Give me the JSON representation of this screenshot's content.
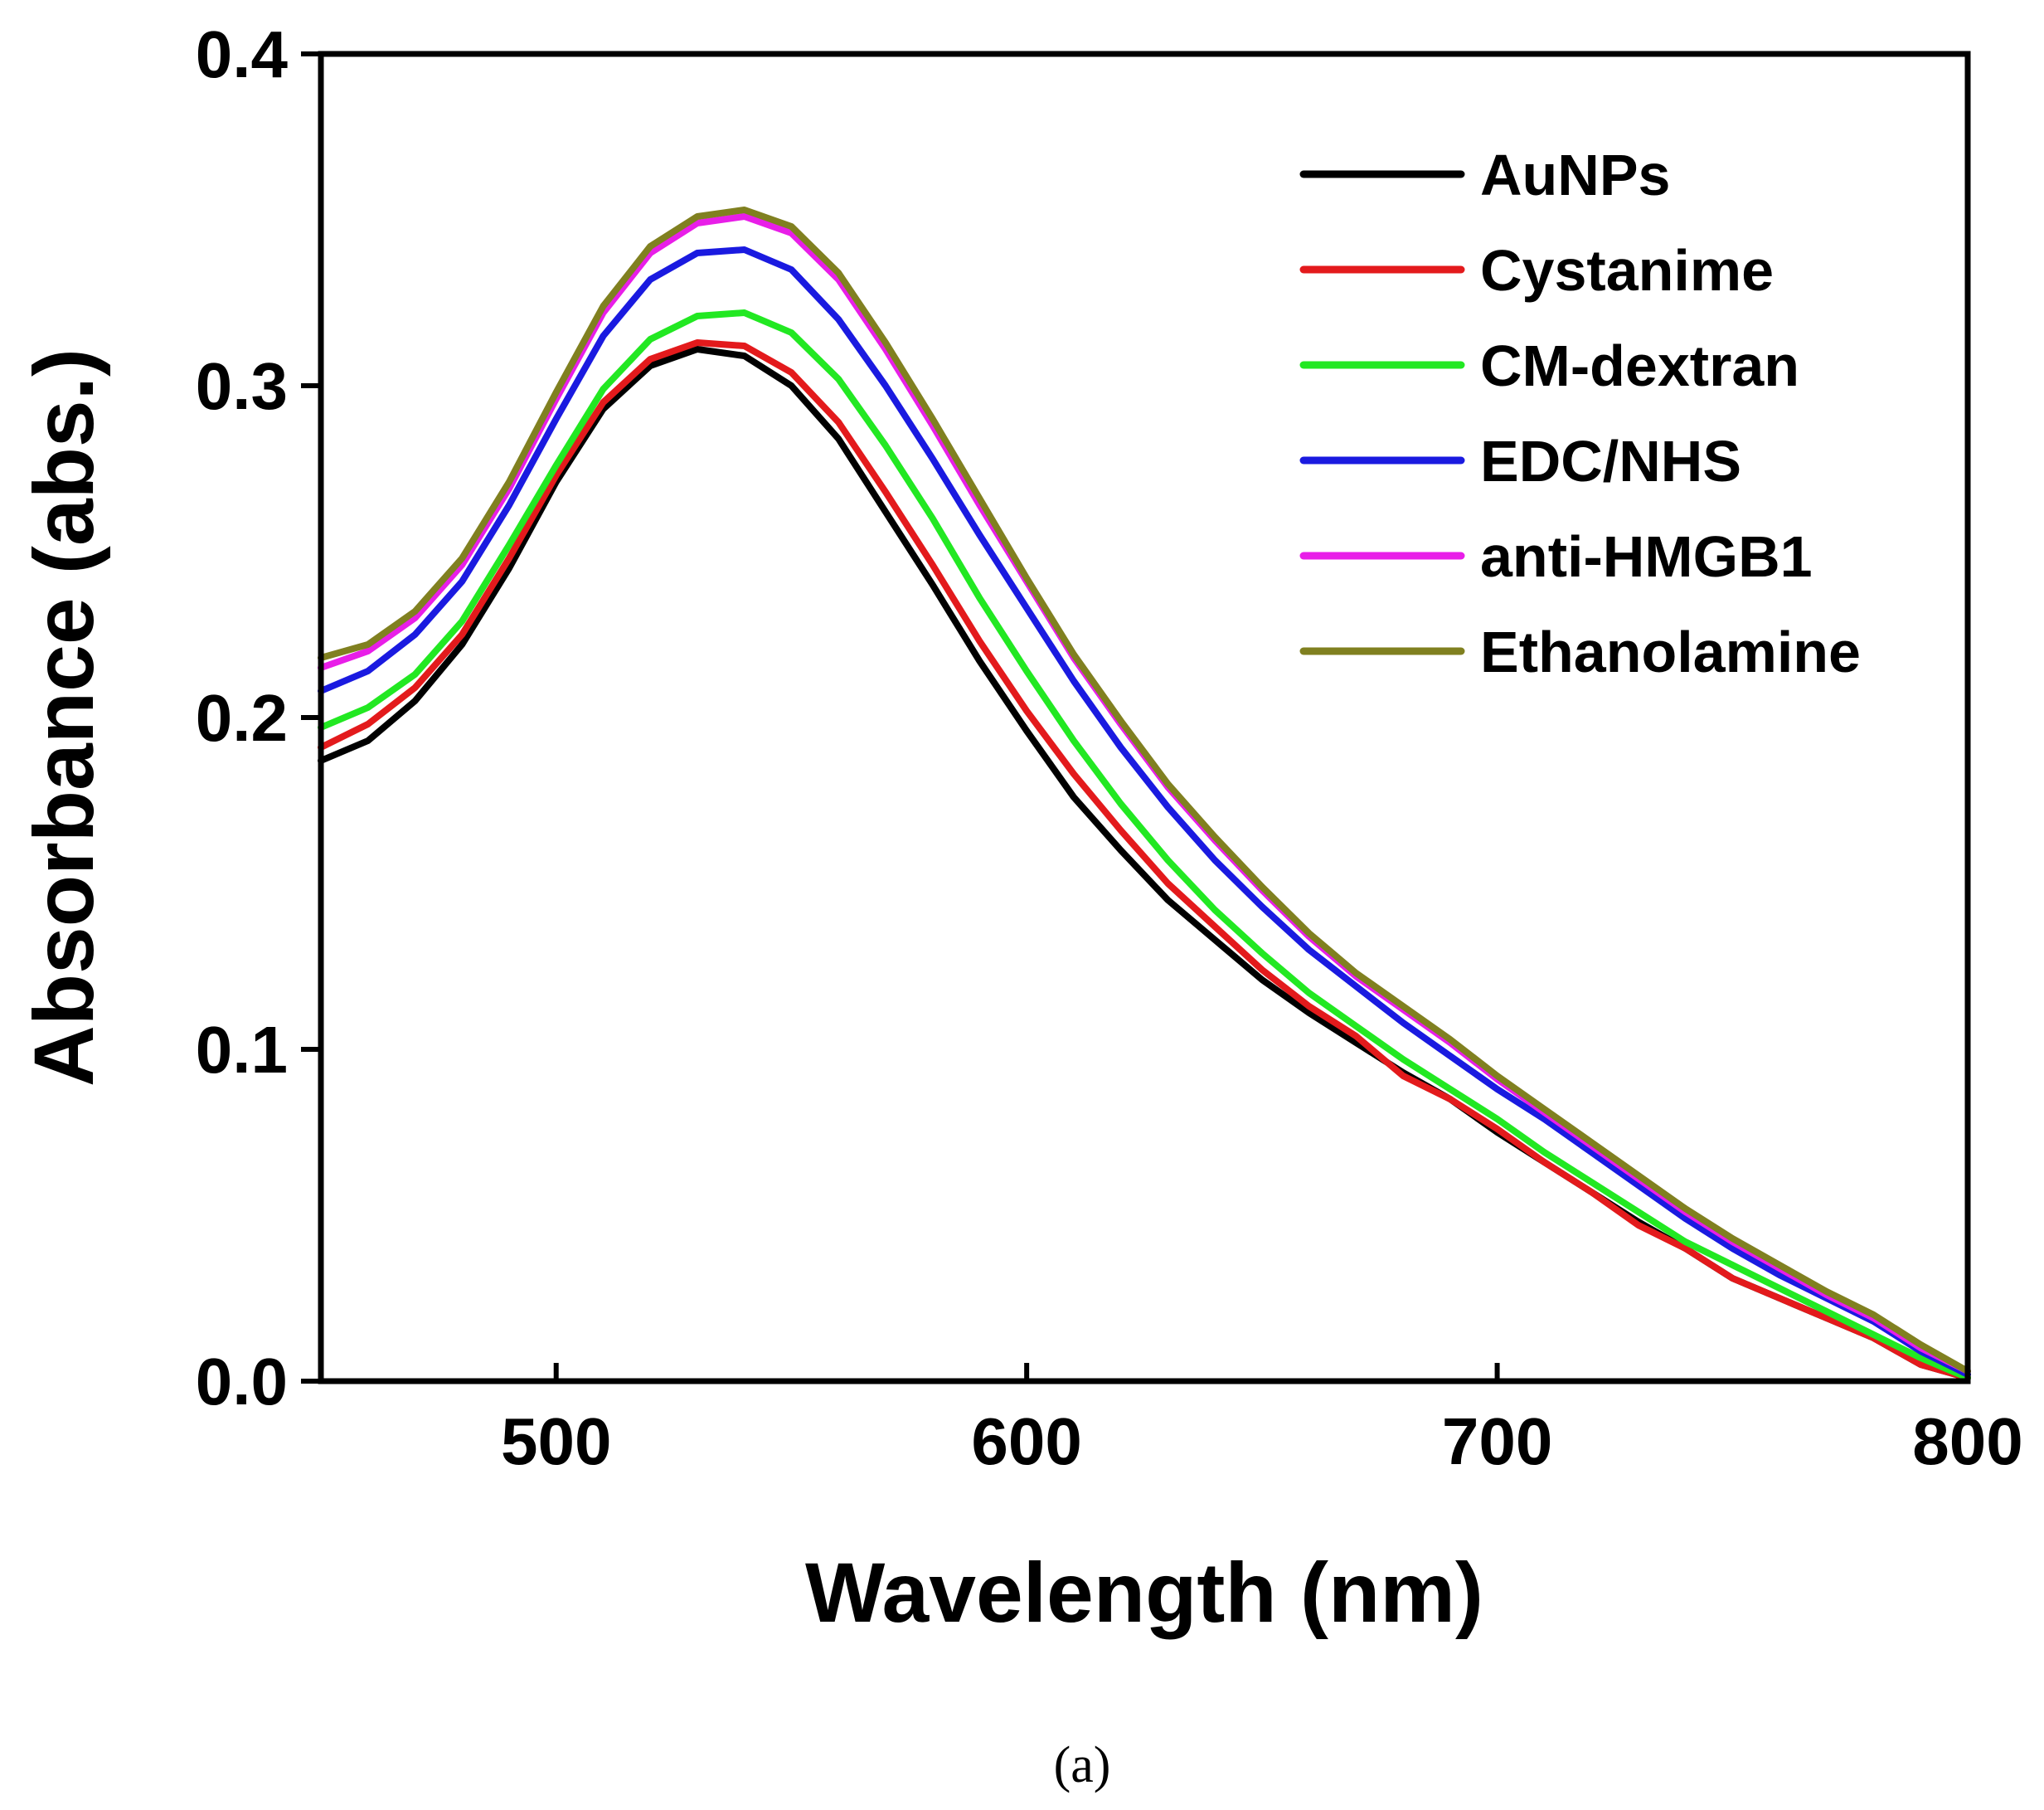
{
  "chart_data": {
    "type": "line",
    "title": "",
    "xlabel": "Wavelength (nm)",
    "ylabel": "Absorbance (abs.)",
    "xlim": [
      450,
      800
    ],
    "ylim": [
      0.0,
      0.4
    ],
    "xticks": [
      500,
      600,
      700,
      800
    ],
    "xtick_labels": [
      "500",
      "600",
      "700",
      "800"
    ],
    "yticks": [
      0.0,
      0.1,
      0.2,
      0.3,
      0.4
    ],
    "ytick_labels": [
      "0.0",
      "0.1",
      "0.2",
      "0.3",
      "0.4"
    ],
    "grid": false,
    "legend_position": "top-right",
    "caption": "(a)",
    "x": [
      450,
      460,
      470,
      480,
      490,
      500,
      510,
      520,
      530,
      540,
      550,
      560,
      570,
      580,
      590,
      600,
      610,
      620,
      630,
      640,
      650,
      660,
      670,
      680,
      690,
      700,
      710,
      720,
      730,
      740,
      750,
      760,
      770,
      780,
      790,
      800
    ],
    "series": [
      {
        "name": "AuNPs",
        "color": "#000000",
        "values": [
          0.187,
          0.193,
          0.205,
          0.222,
          0.245,
          0.271,
          0.293,
          0.306,
          0.311,
          0.309,
          0.3,
          0.284,
          0.262,
          0.24,
          0.217,
          0.196,
          0.176,
          0.16,
          0.145,
          0.133,
          0.121,
          0.111,
          0.102,
          0.093,
          0.085,
          0.075,
          0.066,
          0.057,
          0.048,
          0.04,
          0.031,
          0.025,
          0.019,
          0.013,
          0.005,
          0.001
        ]
      },
      {
        "name": "Cystanime",
        "color": "#e31a1c",
        "values": [
          0.191,
          0.198,
          0.209,
          0.225,
          0.248,
          0.273,
          0.295,
          0.308,
          0.313,
          0.312,
          0.304,
          0.289,
          0.268,
          0.246,
          0.223,
          0.202,
          0.183,
          0.166,
          0.15,
          0.137,
          0.124,
          0.113,
          0.104,
          0.092,
          0.085,
          0.076,
          0.066,
          0.057,
          0.047,
          0.04,
          0.031,
          0.025,
          0.019,
          0.013,
          0.005,
          0.001
        ]
      },
      {
        "name": "CM-dextran",
        "color": "#22e822",
        "values": [
          0.197,
          0.203,
          0.213,
          0.229,
          0.252,
          0.276,
          0.299,
          0.314,
          0.321,
          0.322,
          0.316,
          0.302,
          0.282,
          0.26,
          0.236,
          0.214,
          0.193,
          0.174,
          0.157,
          0.142,
          0.129,
          0.117,
          0.107,
          0.097,
          0.088,
          0.079,
          0.069,
          0.06,
          0.051,
          0.042,
          0.035,
          0.028,
          0.021,
          0.014,
          0.007,
          0.001
        ]
      },
      {
        "name": "EDC/NHS",
        "color": "#1a1ae0",
        "values": [
          0.208,
          0.214,
          0.225,
          0.241,
          0.264,
          0.29,
          0.315,
          0.332,
          0.34,
          0.341,
          0.335,
          0.32,
          0.3,
          0.278,
          0.255,
          0.233,
          0.211,
          0.191,
          0.173,
          0.157,
          0.143,
          0.13,
          0.119,
          0.108,
          0.098,
          0.088,
          0.079,
          0.069,
          0.059,
          0.049,
          0.04,
          0.032,
          0.025,
          0.018,
          0.009,
          0.002
        ]
      },
      {
        "name": "anti-HMGB1",
        "color": "#e81ee8",
        "values": [
          0.215,
          0.22,
          0.23,
          0.246,
          0.269,
          0.296,
          0.322,
          0.34,
          0.349,
          0.351,
          0.346,
          0.332,
          0.311,
          0.288,
          0.264,
          0.241,
          0.218,
          0.198,
          0.179,
          0.163,
          0.148,
          0.134,
          0.122,
          0.112,
          0.102,
          0.091,
          0.081,
          0.071,
          0.061,
          0.051,
          0.042,
          0.034,
          0.026,
          0.019,
          0.01,
          0.003
        ]
      },
      {
        "name": "Ethanolamine",
        "color": "#808020",
        "values": [
          0.218,
          0.222,
          0.232,
          0.248,
          0.271,
          0.298,
          0.324,
          0.342,
          0.351,
          0.353,
          0.348,
          0.334,
          0.313,
          0.29,
          0.266,
          0.242,
          0.219,
          0.199,
          0.18,
          0.164,
          0.149,
          0.135,
          0.123,
          0.113,
          0.103,
          0.092,
          0.082,
          0.072,
          0.062,
          0.052,
          0.043,
          0.035,
          0.027,
          0.02,
          0.011,
          0.003
        ]
      }
    ]
  }
}
